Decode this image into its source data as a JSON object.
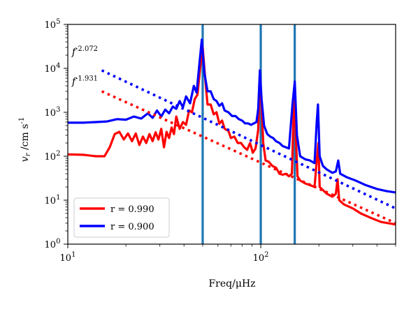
{
  "chart_data": {
    "type": "line",
    "xscale": "log",
    "yscale": "log",
    "xlim": [
      10,
      500
    ],
    "ylim": [
      1,
      100000
    ],
    "xlabel": "Freq/μHz",
    "ylabel": "v_r /cm s^-1",
    "x_ticks": [
      {
        "value": 10,
        "base": "10",
        "exp": "1"
      },
      {
        "value": 100,
        "base": "10",
        "exp": "2"
      }
    ],
    "y_ticks": [
      {
        "value": 1,
        "base": "10",
        "exp": "0"
      },
      {
        "value": 10,
        "base": "10",
        "exp": "1"
      },
      {
        "value": 100,
        "base": "10",
        "exp": "2"
      },
      {
        "value": 1000,
        "base": "10",
        "exp": "3"
      },
      {
        "value": 10000,
        "base": "10",
        "exp": "4"
      },
      {
        "value": 100000,
        "base": "10",
        "exp": "5"
      }
    ],
    "legend_position": "lower-left",
    "grid": false,
    "vertical_lines": [
      {
        "x": 50,
        "color": "#1f77b4"
      },
      {
        "x": 100,
        "color": "#1f77b4"
      },
      {
        "x": 150,
        "color": "#1f77b4"
      }
    ],
    "series": [
      {
        "name": "r = 0.990",
        "color": "#ff0000",
        "style": "solid",
        "points": [
          [
            10,
            110
          ],
          [
            12,
            108
          ],
          [
            14,
            100
          ],
          [
            15.5,
            100
          ],
          [
            16.5,
            160
          ],
          [
            17.5,
            320
          ],
          [
            18.5,
            360
          ],
          [
            19.5,
            240
          ],
          [
            20.5,
            330
          ],
          [
            21.5,
            220
          ],
          [
            22.5,
            330
          ],
          [
            23.5,
            180
          ],
          [
            24.5,
            280
          ],
          [
            25.5,
            200
          ],
          [
            26.5,
            320
          ],
          [
            27.5,
            220
          ],
          [
            28.5,
            350
          ],
          [
            29.5,
            240
          ],
          [
            30.5,
            420
          ],
          [
            31.5,
            160
          ],
          [
            32.5,
            360
          ],
          [
            33.5,
            260
          ],
          [
            34.5,
            450
          ],
          [
            35.5,
            320
          ],
          [
            36.5,
            800
          ],
          [
            38,
            420
          ],
          [
            39.5,
            600
          ],
          [
            41,
            520
          ],
          [
            42.5,
            1100
          ],
          [
            44,
            1000
          ],
          [
            45.5,
            2000
          ],
          [
            47,
            2500
          ],
          [
            48.5,
            10000
          ],
          [
            50,
            30000
          ],
          [
            51.5,
            6000
          ],
          [
            53,
            1500
          ],
          [
            55,
            1500
          ],
          [
            57,
            900
          ],
          [
            59,
            1000
          ],
          [
            61,
            550
          ],
          [
            63,
            650
          ],
          [
            65,
            420
          ],
          [
            68,
            380
          ],
          [
            70,
            260
          ],
          [
            73,
            280
          ],
          [
            76,
            200
          ],
          [
            79,
            200
          ],
          [
            82,
            160
          ],
          [
            85,
            140
          ],
          [
            88,
            200
          ],
          [
            91,
            120
          ],
          [
            94,
            150
          ],
          [
            97,
            400
          ],
          [
            99,
            6500
          ],
          [
            101,
            1500
          ],
          [
            103,
            200
          ],
          [
            106,
            80
          ],
          [
            110,
            75
          ],
          [
            115,
            60
          ],
          [
            120,
            55
          ],
          [
            125,
            40
          ],
          [
            130,
            38
          ],
          [
            135,
            40
          ],
          [
            140,
            35
          ],
          [
            145,
            40
          ],
          [
            148,
            1000
          ],
          [
            150,
            3500
          ],
          [
            152,
            300
          ],
          [
            155,
            35
          ],
          [
            160,
            28
          ],
          [
            170,
            24
          ],
          [
            180,
            22
          ],
          [
            190,
            20
          ],
          [
            196,
            100
          ],
          [
            199,
            200
          ],
          [
            202,
            20
          ],
          [
            210,
            17
          ],
          [
            220,
            14
          ],
          [
            235,
            12
          ],
          [
            245,
            14
          ],
          [
            250,
            30
          ],
          [
            255,
            10
          ],
          [
            270,
            8
          ],
          [
            300,
            6.5
          ],
          [
            330,
            5
          ],
          [
            370,
            4
          ],
          [
            420,
            3.2
          ],
          [
            500,
            2.8
          ]
        ]
      },
      {
        "name": "r = 0.900",
        "color": "#0000ff",
        "style": "solid",
        "points": [
          [
            10,
            580
          ],
          [
            12,
            580
          ],
          [
            14,
            600
          ],
          [
            16,
            620
          ],
          [
            18,
            700
          ],
          [
            20,
            680
          ],
          [
            22,
            800
          ],
          [
            24,
            720
          ],
          [
            26,
            950
          ],
          [
            27.5,
            750
          ],
          [
            29,
            1100
          ],
          [
            30.5,
            800
          ],
          [
            32,
            1150
          ],
          [
            33.5,
            950
          ],
          [
            35,
            1350
          ],
          [
            36.5,
            1200
          ],
          [
            38,
            1800
          ],
          [
            39.5,
            1300
          ],
          [
            41,
            2300
          ],
          [
            43,
            1600
          ],
          [
            45,
            4000
          ],
          [
            46.5,
            2800
          ],
          [
            48,
            12000
          ],
          [
            49.5,
            45000
          ],
          [
            51,
            8000
          ],
          [
            53,
            3000
          ],
          [
            55,
            3000
          ],
          [
            57,
            2000
          ],
          [
            59,
            1800
          ],
          [
            61,
            1400
          ],
          [
            63,
            1600
          ],
          [
            65,
            1100
          ],
          [
            68,
            1000
          ],
          [
            71,
            820
          ],
          [
            74,
            820
          ],
          [
            77,
            700
          ],
          [
            80,
            650
          ],
          [
            83,
            560
          ],
          [
            86,
            560
          ],
          [
            89,
            520
          ],
          [
            92,
            560
          ],
          [
            95,
            600
          ],
          [
            97,
            1200
          ],
          [
            99,
            9000
          ],
          [
            101,
            2000
          ],
          [
            104,
            500
          ],
          [
            108,
            320
          ],
          [
            112,
            280
          ],
          [
            116,
            260
          ],
          [
            120,
            220
          ],
          [
            125,
            200
          ],
          [
            130,
            170
          ],
          [
            135,
            160
          ],
          [
            140,
            150
          ],
          [
            146,
            1500
          ],
          [
            150,
            5000
          ],
          [
            154,
            300
          ],
          [
            160,
            100
          ],
          [
            170,
            85
          ],
          [
            180,
            80
          ],
          [
            190,
            70
          ],
          [
            195,
            600
          ],
          [
            198,
            1500
          ],
          [
            202,
            100
          ],
          [
            210,
            60
          ],
          [
            220,
            50
          ],
          [
            235,
            42
          ],
          [
            245,
            45
          ],
          [
            252,
            80
          ],
          [
            258,
            40
          ],
          [
            280,
            33
          ],
          [
            310,
            28
          ],
          [
            350,
            22
          ],
          [
            400,
            18
          ],
          [
            450,
            16
          ],
          [
            500,
            15
          ]
        ]
      },
      {
        "name": "",
        "color": "#ff0000",
        "style": "dotted",
        "points": [
          [
            15,
            3000
          ],
          [
            500,
            3
          ]
        ]
      },
      {
        "name": "",
        "color": "#0000ff",
        "style": "dotted",
        "points": [
          [
            15,
            9000
          ],
          [
            500,
            6.5
          ]
        ]
      }
    ],
    "annotations": [
      {
        "base": "f",
        "exp": "-2.072",
        "x": 10.5,
        "y": 20000
      },
      {
        "base": "f",
        "exp": "-1.931",
        "x": 10.5,
        "y": 4200
      }
    ]
  }
}
